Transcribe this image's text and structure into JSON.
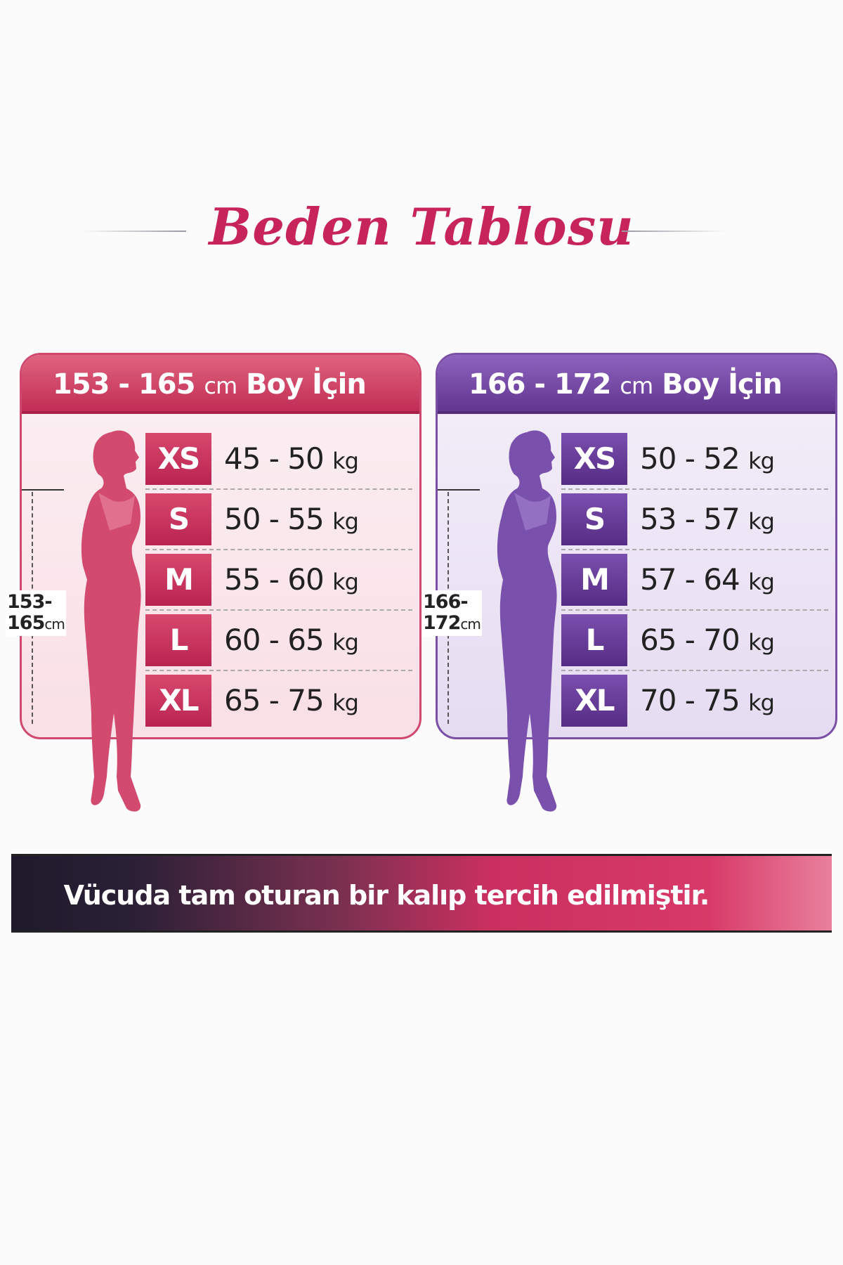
{
  "title": "Beden Tablosu",
  "colors": {
    "pink": "#c8245c",
    "purple": "#62368f",
    "banner_dark": "#1e1a2b"
  },
  "panels": [
    {
      "range": "153 - 165",
      "unit": "cm",
      "suffix": "Boy İçin",
      "height_label": "153-",
      "height_label2": "165",
      "height_unit": "cm",
      "rows": [
        {
          "size": "XS",
          "weight": "45 - 50",
          "unit": "kg"
        },
        {
          "size": "S",
          "weight": "50 - 55",
          "unit": "kg"
        },
        {
          "size": "M",
          "weight": "55 - 60",
          "unit": "kg"
        },
        {
          "size": "L",
          "weight": "60 - 65",
          "unit": "kg"
        },
        {
          "size": "XL",
          "weight": "65 - 75",
          "unit": "kg"
        }
      ]
    },
    {
      "range": "166 - 172",
      "unit": "cm",
      "suffix": "Boy İçin",
      "height_label": "166-",
      "height_label2": "172",
      "height_unit": "cm",
      "rows": [
        {
          "size": "XS",
          "weight": "50 - 52",
          "unit": "kg"
        },
        {
          "size": "S",
          "weight": "53 - 57",
          "unit": "kg"
        },
        {
          "size": "M",
          "weight": "57 - 64",
          "unit": "kg"
        },
        {
          "size": "L",
          "weight": "65 - 70",
          "unit": "kg"
        },
        {
          "size": "XL",
          "weight": "70 - 75",
          "unit": "kg"
        }
      ]
    }
  ],
  "banner": "Vücuda tam oturan bir kalıp tercih edilmiştir."
}
